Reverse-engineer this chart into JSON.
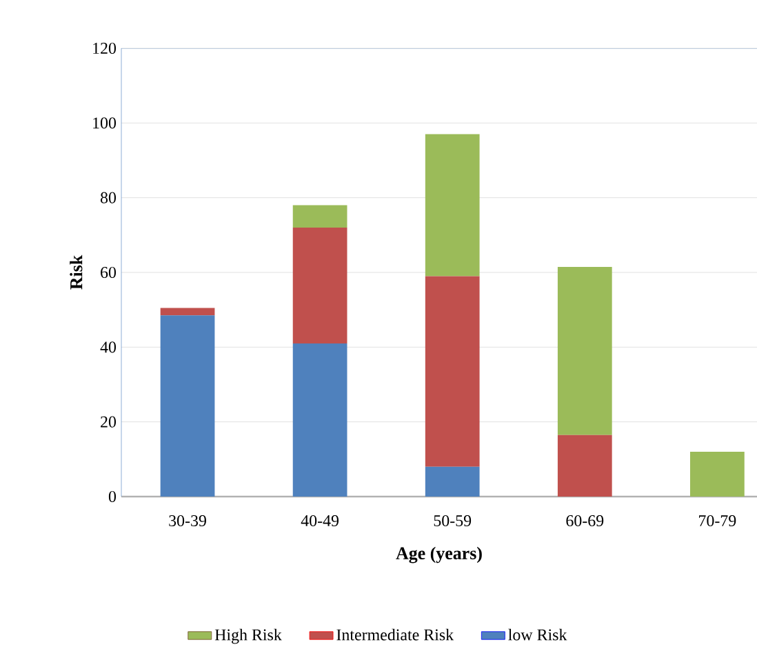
{
  "chart_data": {
    "type": "bar",
    "stacked": true,
    "xlabel": "Age (years)",
    "ylabel": "Risk",
    "categories": [
      "30-39",
      "40-49",
      "50-59",
      "60-69",
      "70-79"
    ],
    "series": [
      {
        "name": "low Risk",
        "color": "#4f81bd",
        "values": [
          48.5,
          41,
          8,
          null,
          null
        ]
      },
      {
        "name": "Intermediate Risk",
        "color": "#c0504d",
        "values": [
          2,
          31,
          51,
          16.5,
          null
        ]
      },
      {
        "name": "High Risk",
        "color": "#9bbb59",
        "values": [
          null,
          6,
          38,
          45,
          12
        ]
      }
    ],
    "ylim": [
      0,
      120
    ],
    "yticks": [
      0,
      20,
      40,
      60,
      80,
      100,
      120
    ],
    "grid": "y",
    "legend": "bottom"
  }
}
